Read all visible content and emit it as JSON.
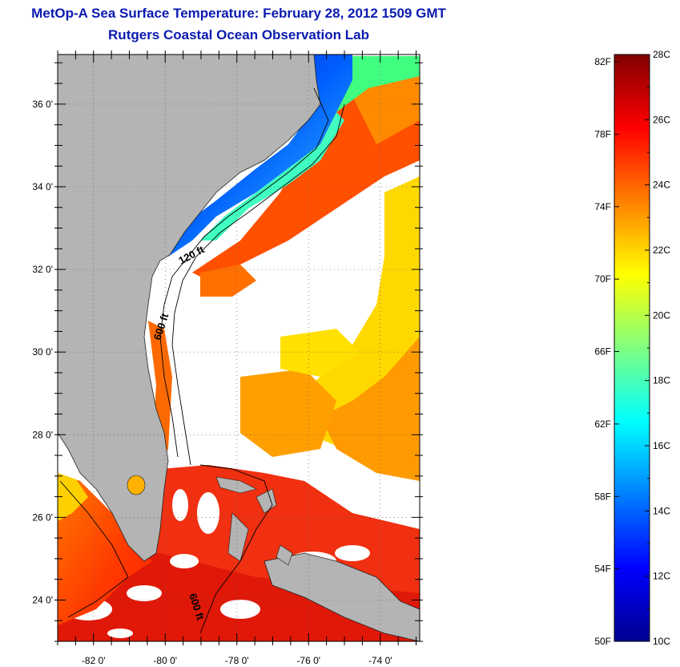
{
  "title": "MetOp-A Sea Surface Temperature:  February 28, 2012 1509 GMT",
  "subtitle": "Rutgers Coastal Ocean Observation Lab",
  "map": {
    "lat_labels": [
      "36 0'",
      "34 0'",
      "32 0'",
      "30 0'",
      "28 0'",
      "26 0'",
      "24 0'"
    ],
    "lat_values": [
      36,
      34,
      32,
      30,
      28,
      26,
      24
    ],
    "lon_labels": [
      "-82 0'",
      "-80 0'",
      "-78 0'",
      "-76 0'",
      "-74 0'"
    ],
    "lon_values": [
      -82,
      -80,
      -78,
      -76,
      -74
    ],
    "lat_range": [
      23,
      37.2
    ],
    "lon_range": [
      -83,
      -72.9
    ],
    "contour_labels": [
      "120 ft",
      "600 ft",
      "600 ft"
    ],
    "land_color": "#b4b4b4",
    "cloud_color": "#ffffff"
  },
  "colorbar": {
    "f_labels": [
      "82F",
      "78F",
      "74F",
      "70F",
      "66F",
      "62F",
      "58F",
      "54F",
      "50F"
    ],
    "f_values": [
      82,
      78,
      74,
      70,
      66,
      62,
      58,
      54,
      50
    ],
    "c_labels": [
      "28C",
      "26C",
      "24C",
      "22C",
      "20C",
      "18C",
      "16C",
      "14C",
      "12C",
      "10C"
    ],
    "c_values": [
      28,
      26,
      24,
      22,
      20,
      18,
      16,
      14,
      12,
      10
    ],
    "range_c": [
      10,
      28
    ],
    "colors": [
      "#00008f",
      "#0000ff",
      "#0080ff",
      "#00ffff",
      "#80ff80",
      "#ffff00",
      "#ff8000",
      "#ff0000",
      "#800000"
    ]
  }
}
